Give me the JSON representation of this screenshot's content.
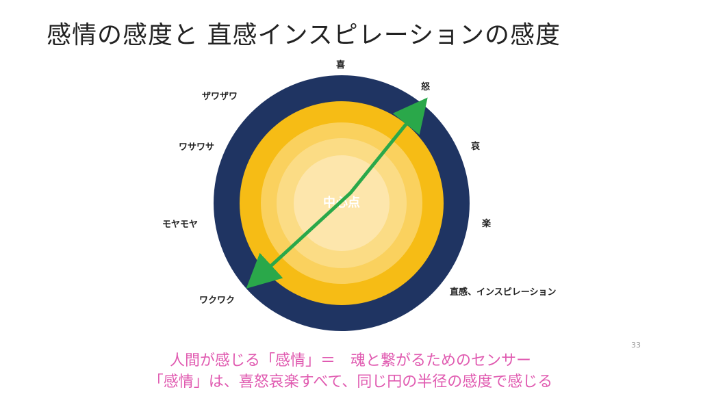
{
  "slide": {
    "title": "感情の感度と 直感インスピレーションの感度",
    "page_number": "33"
  },
  "diagram": {
    "center_label": "中心点",
    "labels": {
      "top": "喜",
      "top_right": "怒",
      "right_upper": "哀",
      "right_middle": "楽",
      "right_lower": "直感、インスピレーション",
      "upper_left": "ザワザワ",
      "left_upper": "ワサワサ",
      "left_middle": "モヤモヤ",
      "lower_left": "ワクワク"
    },
    "colors": {
      "outer_ring": "#1f3462",
      "ring_gold": "#f6bc15",
      "ring_light": "#fad15e",
      "ring_lighter": "#fbdc85",
      "core": "#fde6ac",
      "arrow": "#2aa84a"
    }
  },
  "caption": {
    "line1": "人間が感じる「感情」＝　魂と繋がるためのセンサー",
    "line2": "「感情」は、喜怒哀楽すべて、同じ円の半径の感度で感じる"
  }
}
